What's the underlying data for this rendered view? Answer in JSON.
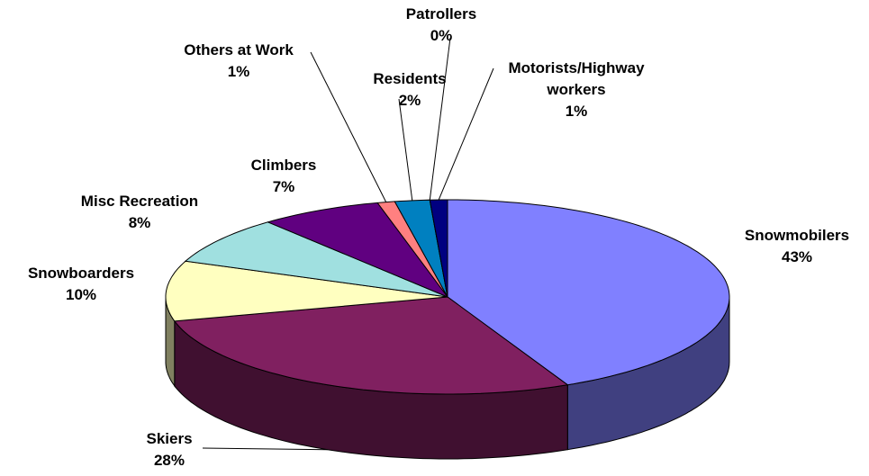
{
  "chart_data": {
    "type": "pie3d",
    "categories": [
      "Snowmobilers",
      "Skiers",
      "Snowboarders",
      "Misc Recreation",
      "Climbers",
      "Others at Work",
      "Residents",
      "Patrollers",
      "Motorists/Highway workers"
    ],
    "values": [
      43,
      28,
      10,
      8,
      7,
      1,
      2,
      0,
      1
    ],
    "value_labels": [
      "43%",
      "28%",
      "10%",
      "8%",
      "7%",
      "1%",
      "2%",
      "0%",
      "1%"
    ],
    "colors": [
      "#8080ff",
      "#802060",
      "#ffffc0",
      "#a0e0e0",
      "#600080",
      "#ff8080",
      "#0080c0",
      "#c0c0ff",
      "#000080"
    ]
  }
}
